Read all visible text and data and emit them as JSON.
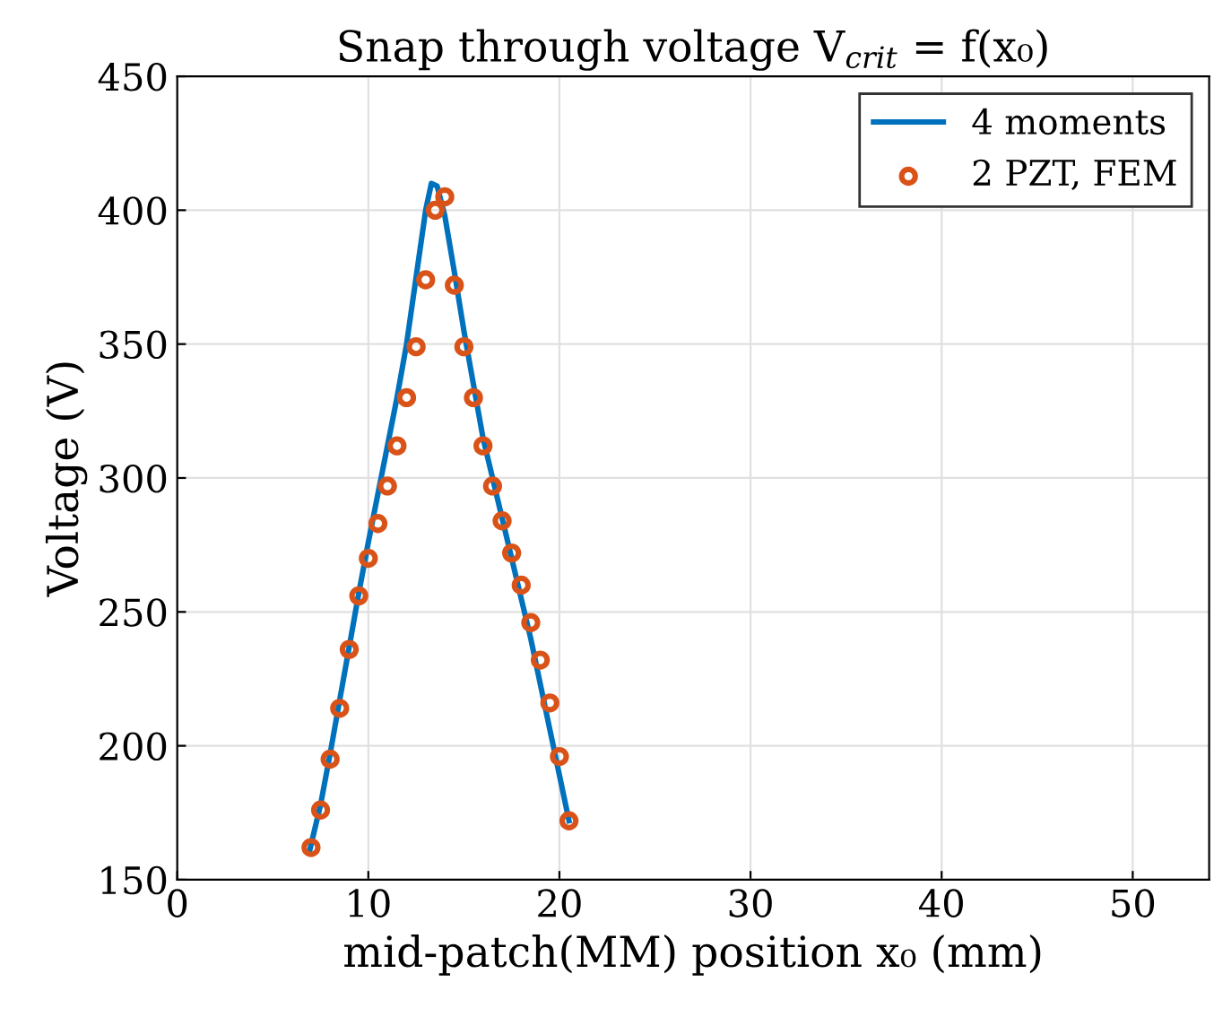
{
  "chart_data": {
    "type": "line",
    "title": "Snap through voltage V$_{crit}$ = f(x₀)",
    "xlabel": "mid-patch(MM) position x₀ (mm)",
    "ylabel": "Voltage (V)",
    "xlim": [
      0,
      54
    ],
    "ylim": [
      150,
      450
    ],
    "xticks": [
      0,
      10,
      20,
      30,
      40,
      50
    ],
    "yticks": [
      150,
      200,
      250,
      300,
      350,
      400,
      450
    ],
    "grid": true,
    "legend": "top right",
    "series": [
      {
        "name": "4 moments",
        "color": "#0072bd",
        "line_style": "solid",
        "marker": "none",
        "x": [
          6.9,
          7.5,
          8,
          8.5,
          9,
          9.5,
          10,
          10.5,
          11,
          11.5,
          12,
          12.5,
          13,
          13.3,
          13.6,
          14,
          14.5,
          15,
          15.5,
          16,
          16.5,
          17,
          17.5,
          18,
          18.5,
          19,
          19.5,
          20,
          20.5
        ],
        "values": [
          160,
          178,
          197,
          217,
          237,
          257,
          276,
          294,
          312,
          330,
          350,
          375,
          400,
          410,
          409,
          398,
          377,
          355,
          335,
          315,
          300,
          285,
          270,
          255,
          240,
          223,
          206,
          189,
          172
        ]
      },
      {
        "name": "2 PZT, FEM",
        "type": "scatter",
        "color": "#d95319",
        "marker": "circle",
        "x": [
          7,
          7.5,
          8,
          8.5,
          9,
          9.5,
          10,
          10.5,
          11,
          11.5,
          12,
          12.5,
          13,
          13.5,
          14,
          14.5,
          15,
          15.5,
          16,
          16.5,
          17,
          17.5,
          18,
          18.5,
          19,
          19.5,
          20,
          20.5
        ],
        "values": [
          162,
          176,
          195,
          214,
          236,
          256,
          270,
          283,
          297,
          312,
          330,
          349,
          374,
          400,
          405,
          372,
          349,
          330,
          312,
          297,
          284,
          272,
          260,
          246,
          232,
          216,
          196,
          172
        ]
      }
    ]
  }
}
